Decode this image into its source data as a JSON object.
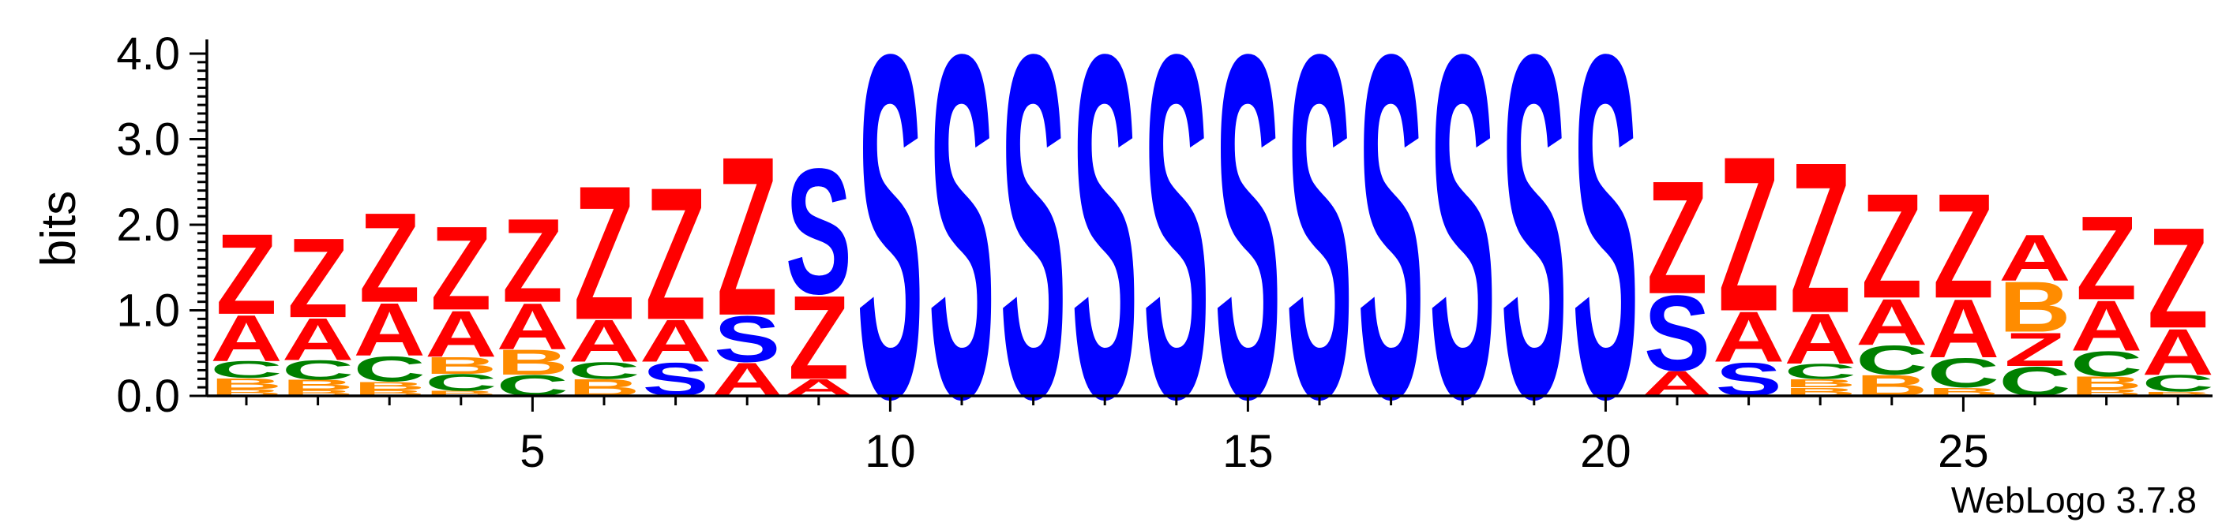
{
  "chart_data": {
    "type": "sequence-logo",
    "ylabel": "bits",
    "ylim": [
      0,
      4.0
    ],
    "y_ticks": [
      "0.0",
      "1.0",
      "2.0",
      "3.0",
      "4.0"
    ],
    "x_range": [
      1,
      28
    ],
    "x_ticks": [
      "5",
      "10",
      "15",
      "20",
      "25"
    ],
    "x_tick_values": [
      5,
      10,
      15,
      20,
      25
    ],
    "credit": "WebLogo 3.7.8",
    "colors": {
      "Z": "#ff0000",
      "A": "#ff0000",
      "S": "#0000ff",
      "C": "#008000",
      "B": "#ff8c00"
    },
    "positions": [
      {
        "pos": 1,
        "stack": [
          [
            "B",
            0.08
          ],
          [
            "B",
            0.13
          ],
          [
            "C",
            0.2
          ],
          [
            "A",
            0.55
          ],
          [
            "Z",
            0.96
          ]
        ]
      },
      {
        "pos": 2,
        "stack": [
          [
            "B",
            0.07
          ],
          [
            "B",
            0.12
          ],
          [
            "C",
            0.23
          ],
          [
            "A",
            0.5
          ],
          [
            "Z",
            0.95
          ]
        ]
      },
      {
        "pos": 3,
        "stack": [
          [
            "B",
            0.07
          ],
          [
            "B",
            0.1
          ],
          [
            "C",
            0.3
          ],
          [
            "A",
            0.63
          ],
          [
            "Z",
            1.07
          ]
        ]
      },
      {
        "pos": 4,
        "stack": [
          [
            "B",
            0.06
          ],
          [
            "C",
            0.2
          ],
          [
            "B",
            0.2
          ],
          [
            "A",
            0.55
          ],
          [
            "Z",
            1.0
          ]
        ]
      },
      {
        "pos": 5,
        "stack": [
          [
            "C",
            0.25
          ],
          [
            "B",
            0.3
          ],
          [
            "A",
            0.55
          ],
          [
            "Z",
            1.0
          ]
        ]
      },
      {
        "pos": 6,
        "stack": [
          [
            "B",
            0.2
          ],
          [
            "C",
            0.2
          ],
          [
            "A",
            0.5
          ],
          [
            "Z",
            1.6
          ]
        ]
      },
      {
        "pos": 7,
        "stack": [
          [
            "S",
            0.4
          ],
          [
            "A",
            0.5
          ],
          [
            "Z",
            1.58
          ]
        ]
      },
      {
        "pos": 8,
        "stack": [
          [
            "A",
            0.4
          ],
          [
            "S",
            0.55
          ],
          [
            "Z",
            1.9
          ]
        ]
      },
      {
        "pos": 9,
        "stack": [
          [
            "A",
            0.2
          ],
          [
            "Z",
            1.0
          ],
          [
            "S",
            1.5
          ]
        ]
      },
      {
        "pos": 10,
        "stack": [
          [
            "S",
            4.1
          ]
        ]
      },
      {
        "pos": 11,
        "stack": [
          [
            "S",
            4.1
          ]
        ]
      },
      {
        "pos": 12,
        "stack": [
          [
            "S",
            4.1
          ]
        ]
      },
      {
        "pos": 13,
        "stack": [
          [
            "S",
            4.1
          ]
        ]
      },
      {
        "pos": 14,
        "stack": [
          [
            "S",
            4.1
          ]
        ]
      },
      {
        "pos": 15,
        "stack": [
          [
            "S",
            4.1
          ]
        ]
      },
      {
        "pos": 16,
        "stack": [
          [
            "S",
            4.1
          ]
        ]
      },
      {
        "pos": 17,
        "stack": [
          [
            "S",
            4.1
          ]
        ]
      },
      {
        "pos": 18,
        "stack": [
          [
            "S",
            4.1
          ]
        ]
      },
      {
        "pos": 19,
        "stack": [
          [
            "S",
            4.1
          ]
        ]
      },
      {
        "pos": 20,
        "stack": [
          [
            "S",
            4.1
          ]
        ]
      },
      {
        "pos": 21,
        "stack": [
          [
            "A",
            0.3
          ],
          [
            "S",
            0.9
          ],
          [
            "Z",
            1.35
          ]
        ]
      },
      {
        "pos": 22,
        "stack": [
          [
            "S",
            0.4
          ],
          [
            "A",
            0.6
          ],
          [
            "Z",
            1.85
          ]
        ]
      },
      {
        "pos": 23,
        "stack": [
          [
            "B",
            0.1
          ],
          [
            "B",
            0.1
          ],
          [
            "C",
            0.18
          ],
          [
            "A",
            0.6
          ],
          [
            "Z",
            1.8
          ]
        ]
      },
      {
        "pos": 24,
        "stack": [
          [
            "B",
            0.25
          ],
          [
            "C",
            0.35
          ],
          [
            "A",
            0.55
          ],
          [
            "Z",
            1.25
          ]
        ]
      },
      {
        "pos": 25,
        "stack": [
          [
            "B",
            0.1
          ],
          [
            "C",
            0.35
          ],
          [
            "A",
            0.7
          ],
          [
            "Z",
            1.25
          ]
        ]
      },
      {
        "pos": 26,
        "stack": [
          [
            "C",
            0.35
          ],
          [
            "Z",
            0.4
          ],
          [
            "B",
            0.6
          ],
          [
            "A",
            0.55
          ]
        ]
      },
      {
        "pos": 27,
        "stack": [
          [
            "B",
            0.08
          ],
          [
            "B",
            0.15
          ],
          [
            "C",
            0.3
          ],
          [
            "A",
            0.6
          ],
          [
            "Z",
            1.0
          ]
        ]
      },
      {
        "pos": 28,
        "stack": [
          [
            "B",
            0.05
          ],
          [
            "C",
            0.2
          ],
          [
            "A",
            0.55
          ],
          [
            "Z",
            1.2
          ]
        ]
      }
    ]
  }
}
